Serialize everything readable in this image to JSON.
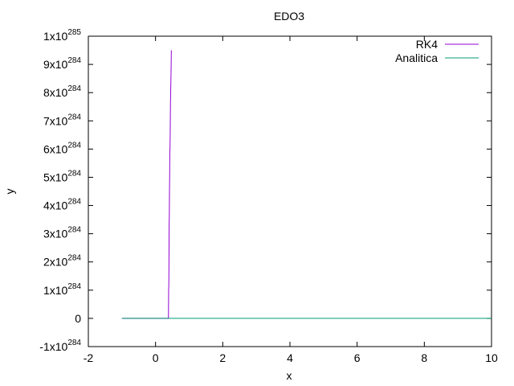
{
  "chart_data": {
    "type": "line",
    "title": "EDO3",
    "xlabel": "x",
    "ylabel": "y",
    "xlim": [
      -2,
      10
    ],
    "ylim": [
      -1e+284,
      1e+285
    ],
    "grid": false,
    "legend_position": "top-right",
    "x_ticks": [
      {
        "value": -2,
        "label": "-2"
      },
      {
        "value": 0,
        "label": "0"
      },
      {
        "value": 2,
        "label": "2"
      },
      {
        "value": 4,
        "label": "4"
      },
      {
        "value": 6,
        "label": "6"
      },
      {
        "value": 8,
        "label": "8"
      },
      {
        "value": 10,
        "label": "10"
      }
    ],
    "y_ticks": [
      {
        "value": -1e+284,
        "mantissa": "-1x10",
        "exponent": "284"
      },
      {
        "value": 0,
        "mantissa": "0",
        "exponent": ""
      },
      {
        "value": 1e+284,
        "mantissa": "1x10",
        "exponent": "284"
      },
      {
        "value": 2e+284,
        "mantissa": "2x10",
        "exponent": "284"
      },
      {
        "value": 3e+284,
        "mantissa": "3x10",
        "exponent": "284"
      },
      {
        "value": 4e+284,
        "mantissa": "4x10",
        "exponent": "284"
      },
      {
        "value": 5e+284,
        "mantissa": "5x10",
        "exponent": "284"
      },
      {
        "value": 6e+284,
        "mantissa": "6x10",
        "exponent": "284"
      },
      {
        "value": 7e+284,
        "mantissa": "7x10",
        "exponent": "284"
      },
      {
        "value": 8e+284,
        "mantissa": "8x10",
        "exponent": "284"
      },
      {
        "value": 9e+284,
        "mantissa": "9x10",
        "exponent": "284"
      },
      {
        "value": 1e+285,
        "mantissa": "1x10",
        "exponent": "285"
      }
    ],
    "series": [
      {
        "name": "RK4",
        "color": "#9400d3",
        "x": [
          -1.0,
          0.38,
          0.385,
          0.39,
          0.395,
          0.4,
          0.405,
          0.41,
          0.415,
          0.42,
          0.425,
          0.43,
          0.435,
          0.44,
          0.445,
          0.45,
          0.455,
          0.46,
          0.465,
          0.47
        ],
        "y": [
          0,
          0,
          5e+282,
          1e+284,
          1.2e+284,
          2e+284,
          3.4e+284,
          3.6e+284,
          4.5e+284,
          5e+284,
          5.9e+284,
          6e+284,
          6.4e+284,
          7e+284,
          7.6e+284,
          8e+284,
          8.3e+284,
          8.6e+284,
          9e+284,
          9.5e+284
        ]
      },
      {
        "name": "Analitica",
        "color": "#009e73",
        "x": [
          -1.0,
          10.0
        ],
        "y": [
          0,
          0
        ]
      }
    ]
  }
}
